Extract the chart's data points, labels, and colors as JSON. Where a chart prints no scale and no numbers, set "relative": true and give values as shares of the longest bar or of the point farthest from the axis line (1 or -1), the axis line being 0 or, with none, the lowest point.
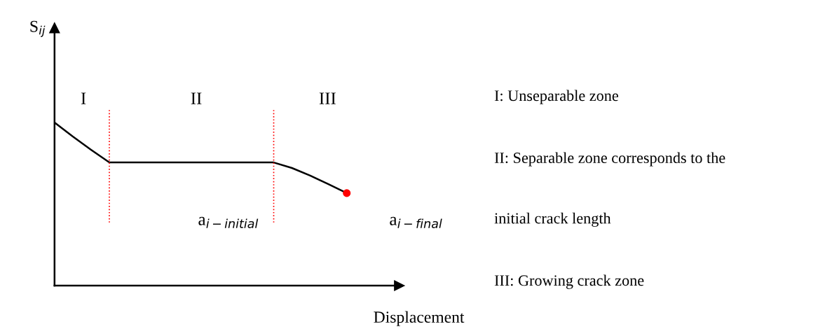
{
  "chart_data": {
    "type": "line",
    "relative": true,
    "xlabel": "Displacement",
    "categories": [
      null,
      null,
      null,
      null,
      null,
      null,
      null,
      null,
      null,
      null,
      null,
      null,
      null,
      null,
      null,
      null,
      null
    ],
    "series": [
      {
        "color": "#000000",
        "values": [
          1,
          0.914,
          0.833,
          0.755,
          0.755,
          0.755,
          0.755,
          0.755,
          0.755,
          0.755,
          0.755,
          0.755,
          0.755,
          0.721,
          0.674,
          0.622,
          0.567
        ]
      }
    ],
    "annotations": [
      "I",
      "II",
      "III",
      "a$_{i−initial}$",
      "a$_{i−final}$",
      "I: Unseparable zone",
      "II: Separable zone corresponds to the",
      "initial crack length",
      "III: Growing crack zone",
      "S$_{ij}$"
    ],
    "legend": false
  }
}
